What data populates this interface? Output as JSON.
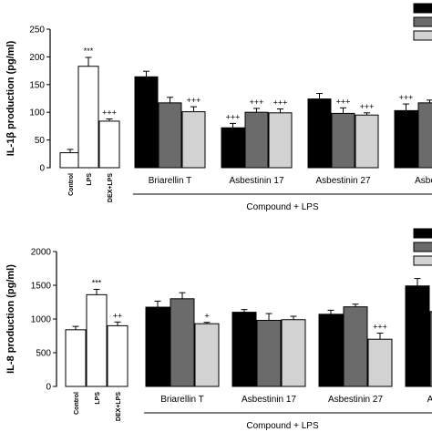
{
  "chart_data": [
    {
      "type": "bar",
      "ylabel": "IL-1β production (pg/ml)",
      "xlabel": "Compound + LPS",
      "ylim": [
        0,
        250
      ],
      "yticks": [
        0,
        50,
        100,
        150,
        200,
        250
      ],
      "control_groups": [
        {
          "label": "Control",
          "value": 27,
          "error": 6,
          "sig": ""
        },
        {
          "label": "LPS",
          "value": 183,
          "error": 16,
          "sig": "***"
        },
        {
          "label": "DEX+LPS",
          "value": 84,
          "error": 4,
          "sig": "+++"
        }
      ],
      "compound_groups": [
        {
          "label": "Briarellin T",
          "values": [
            164,
            117,
            101
          ],
          "errors": [
            10,
            10,
            9
          ],
          "sig": [
            "",
            "",
            "+++"
          ]
        },
        {
          "label": "Asbestinin 17",
          "values": [
            72,
            100,
            99
          ],
          "errors": [
            8,
            7,
            7
          ],
          "sig": [
            "+++",
            "+++",
            "+++"
          ]
        },
        {
          "label": "Asbestinin 27",
          "values": [
            124,
            98,
            95
          ],
          "errors": [
            10,
            10,
            4
          ],
          "sig": [
            "",
            "+++",
            "+++"
          ]
        },
        {
          "label": "Asbesti",
          "values": [
            103,
            117
          ],
          "errors": [
            12,
            5
          ],
          "sig": [
            "+++",
            ""
          ]
        }
      ]
    },
    {
      "type": "bar",
      "ylabel": "IL-8 production (pg/ml)",
      "xlabel": "Compound + LPS",
      "ylim": [
        0,
        2000
      ],
      "yticks": [
        0,
        500,
        1000,
        1500,
        2000
      ],
      "control_groups": [
        {
          "label": "Control",
          "value": 840,
          "error": 50,
          "sig": ""
        },
        {
          "label": "LPS",
          "value": 1360,
          "error": 80,
          "sig": "***"
        },
        {
          "label": "DEX+LPS",
          "value": 900,
          "error": 55,
          "sig": "++"
        }
      ],
      "compound_groups": [
        {
          "label": "Briarellin T",
          "values": [
            1175,
            1300,
            930
          ],
          "errors": [
            90,
            90,
            20
          ],
          "sig": [
            "",
            "",
            "+"
          ]
        },
        {
          "label": "Asbestinin 17",
          "values": [
            1100,
            980,
            990
          ],
          "errors": [
            40,
            100,
            50
          ],
          "sig": [
            "",
            "",
            ""
          ]
        },
        {
          "label": "Asbestinin 27",
          "values": [
            1070,
            1180,
            700
          ],
          "errors": [
            60,
            40,
            90
          ],
          "sig": [
            "",
            "",
            "+++"
          ]
        },
        {
          "label": "Asbesti",
          "values": [
            1490,
            1110
          ],
          "errors": [
            110,
            30
          ],
          "sig": [
            "",
            ""
          ]
        }
      ]
    }
  ],
  "colors": {
    "dose1": "#000000",
    "dose2": "#6b6b6b",
    "dose3": "#d2d2d2",
    "control": "#ffffff"
  }
}
